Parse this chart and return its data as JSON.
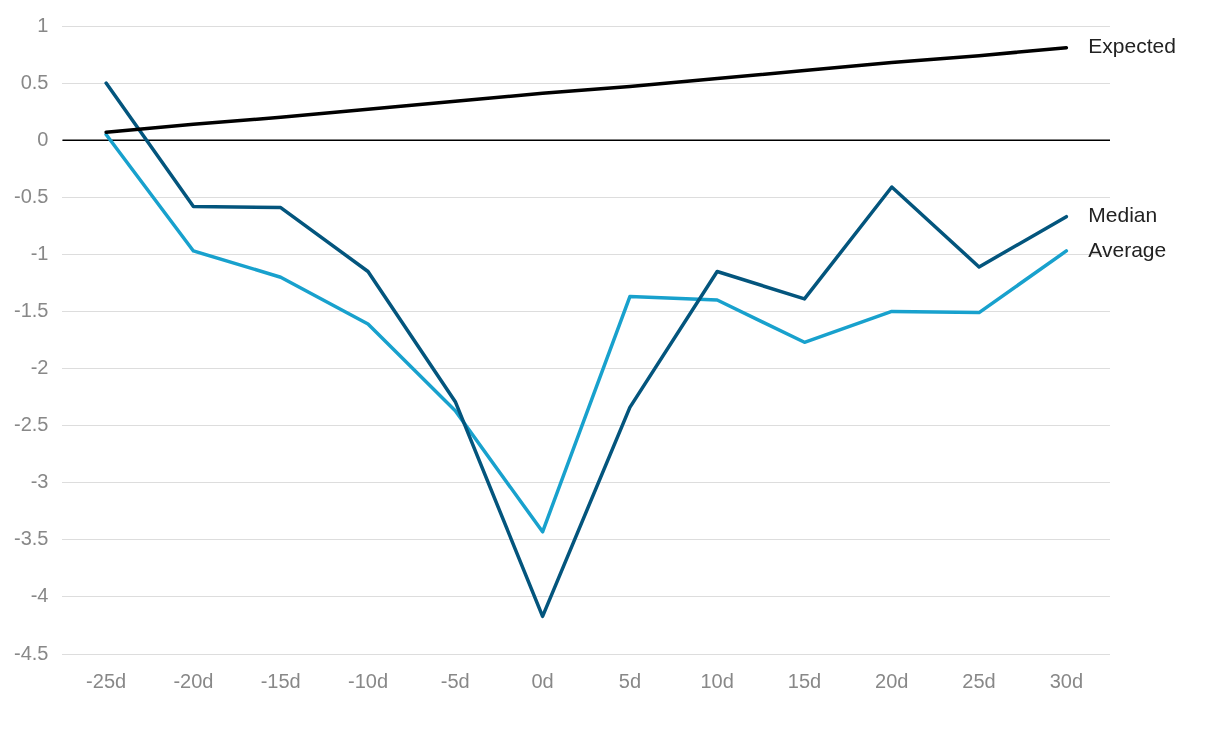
{
  "chart_data": {
    "type": "line",
    "categories": [
      "-25d",
      "-20d",
      "-15d",
      "-10d",
      "-5d",
      "0d",
      "5d",
      "10d",
      "15d",
      "20d",
      "25d",
      "30d"
    ],
    "series": [
      {
        "name": "Expected",
        "color": "#000000",
        "values": [
          0.07,
          0.14,
          0.2,
          0.27,
          0.34,
          0.41,
          0.47,
          0.54,
          0.61,
          0.68,
          0.74,
          0.81
        ]
      },
      {
        "name": "Median",
        "color": "#03557d",
        "values": [
          0.5,
          -0.58,
          -0.59,
          -1.15,
          -2.29,
          -4.17,
          -2.34,
          -1.15,
          -1.39,
          -0.41,
          -1.11,
          -0.67
        ]
      },
      {
        "name": "Average",
        "color": "#18a1cd",
        "values": [
          0.05,
          -0.97,
          -1.2,
          -1.61,
          -2.37,
          -3.43,
          -1.37,
          -1.4,
          -1.77,
          -1.5,
          -1.51,
          -0.97
        ]
      }
    ],
    "ylim": [
      -4.5,
      1
    ],
    "yticks": [
      -4.5,
      -4,
      -3.5,
      -3,
      -2.5,
      -2,
      -1.5,
      -1,
      -0.5,
      0,
      0.5,
      1
    ],
    "ref_lines": [
      {
        "axis": "y",
        "value": 0,
        "color": "#000000"
      }
    ],
    "grid": "y",
    "legend": false,
    "marker": "none",
    "line_style": "solid"
  }
}
